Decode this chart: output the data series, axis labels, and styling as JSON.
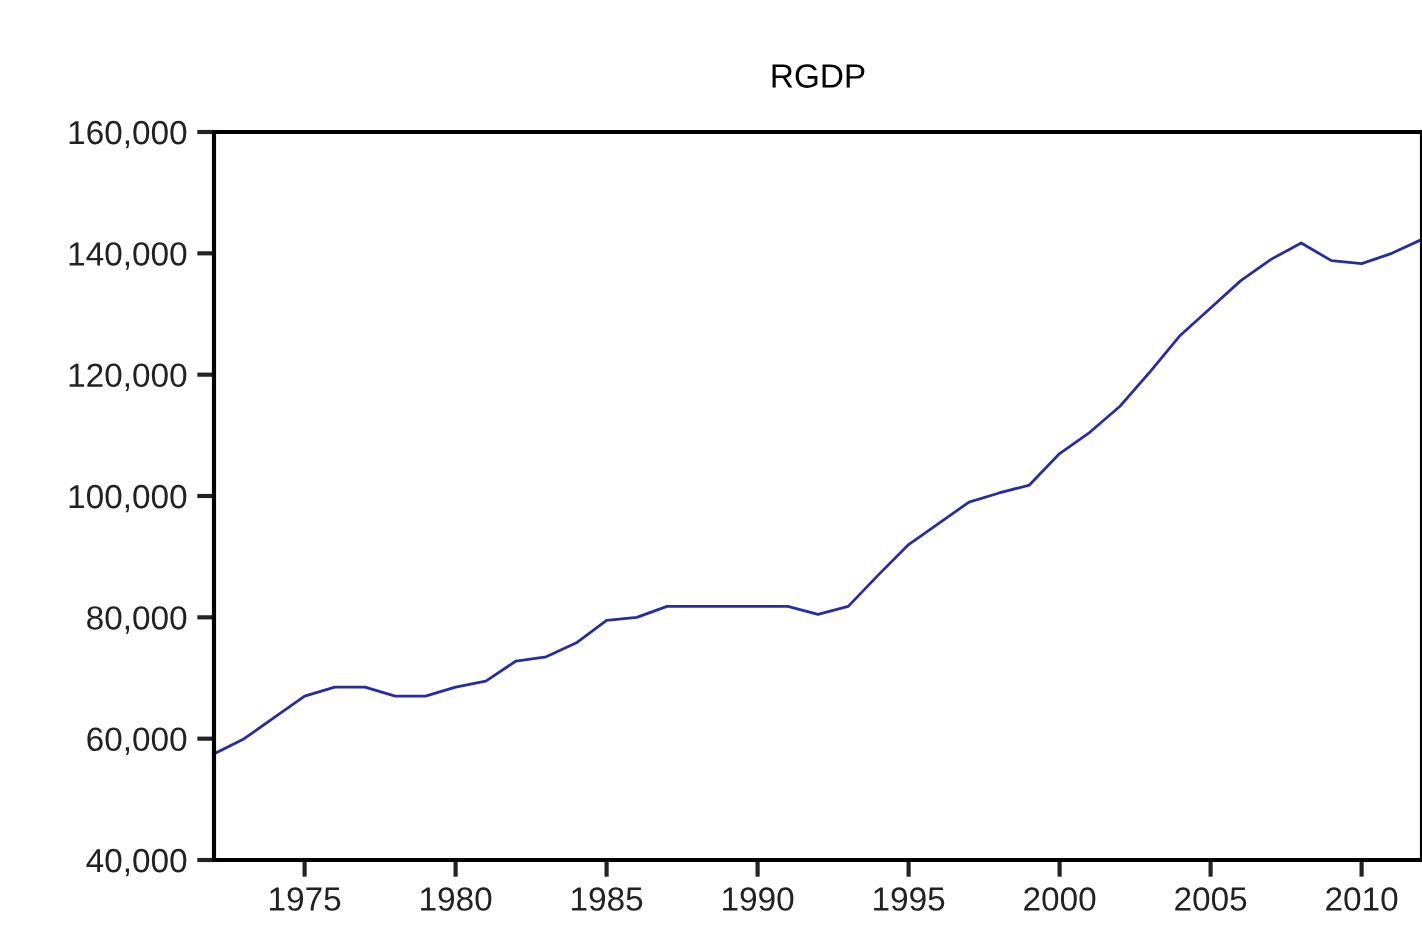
{
  "chart_data": {
    "type": "line",
    "title": "RGDP",
    "x": [
      1972,
      1973,
      1974,
      1975,
      1976,
      1977,
      1978,
      1979,
      1980,
      1981,
      1982,
      1983,
      1984,
      1985,
      1986,
      1987,
      1988,
      1989,
      1990,
      1991,
      1992,
      1993,
      1994,
      1995,
      1996,
      1997,
      1998,
      1999,
      2000,
      2001,
      2002,
      2003,
      2004,
      2005,
      2006,
      2007,
      2008,
      2009,
      2010,
      2011,
      2012
    ],
    "series": [
      {
        "color": "#2b2ba0",
        "values": [
          57500,
          60000,
          63500,
          67000,
          68500,
          68500,
          67000,
          67000,
          68500,
          69500,
          72800,
          73500,
          75800,
          79500,
          80000,
          81800,
          81800,
          81800,
          81800,
          81800,
          80500,
          81800,
          87000,
          92000,
          95500,
          99000,
          100500,
          101800,
          107000,
          110500,
          114800,
          120500,
          126500,
          131000,
          135500,
          139000,
          141700,
          138800,
          138300,
          140000,
          142300
        ]
      }
    ],
    "xlim": [
      1972,
      2012
    ],
    "xticks": [
      1975,
      1980,
      1985,
      1990,
      1995,
      2000,
      2005,
      2010
    ],
    "ylim": [
      40000,
      160000
    ],
    "yticks": [
      {
        "value": 40000,
        "label": "40,000"
      },
      {
        "value": 60000,
        "label": "60,000"
      },
      {
        "value": 80000,
        "label": "80,000"
      },
      {
        "value": 100000,
        "label": "100,000"
      },
      {
        "value": 120000,
        "label": "120,000"
      },
      {
        "value": 140000,
        "label": "140,000"
      },
      {
        "value": 160000,
        "label": "160,000"
      }
    ],
    "grid": false,
    "legend": false,
    "marker": "none",
    "line_style": "solid"
  }
}
